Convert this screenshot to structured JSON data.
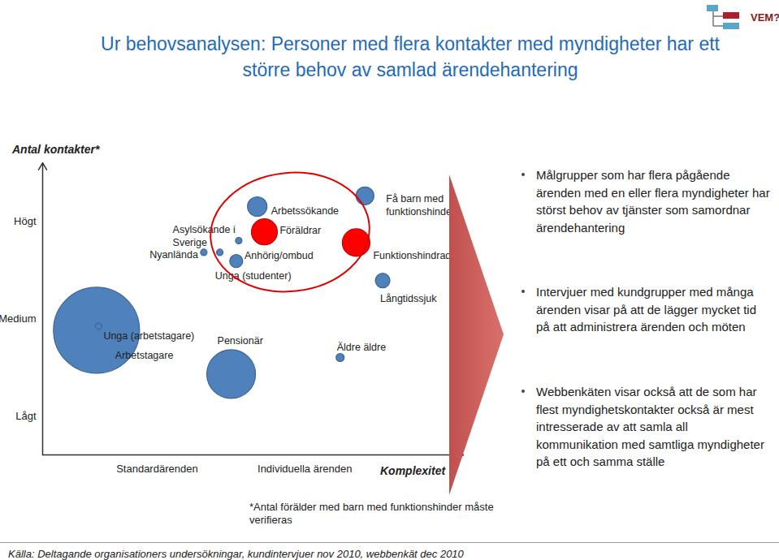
{
  "chart_data": {
    "type": "scatter",
    "title": "Ur behovsanalysen: Personer med flera kontakter med myndigheter har ett\nstörre behov av samlad ärendehantering",
    "x_label": "Komplexitet",
    "y_label": "Antal kontakter*",
    "xlim": [
      0,
      10
    ],
    "ylim": [
      0.6,
      3.6
    ],
    "xticks": [
      {
        "value": 2.72,
        "label": "Standardärenden"
      },
      {
        "value": 6.23,
        "label": "Individuella ärenden"
      }
    ],
    "yticks": [
      {
        "value": 1,
        "label": "Lågt"
      },
      {
        "value": 2,
        "label": "Medium"
      },
      {
        "value": 3,
        "label": "Högt"
      }
    ],
    "grid": false,
    "labels": [
      "Unga (arbetstagare)",
      "Arbetstagare",
      "Pensionär",
      "Äldre äldre",
      "Långtidssjuk",
      "Unga (studenter)",
      "Arbetssökande",
      "Föräldrar",
      "Anhörig/ombud",
      "Asylsökande i\nSverige",
      "Nyanlända",
      "Få barn med\nfunktionshinder*",
      "Funktionshindrad"
    ],
    "x": [
      1.33,
      1.28,
      4.48,
      7.07,
      8.08,
      4.6,
      5.1,
      5.27,
      4.66,
      4.21,
      3.83,
      7.66,
      7.45
    ],
    "y": [
      1.92,
      1.88,
      1.43,
      1.6,
      2.39,
      2.59,
      3.15,
      2.89,
      2.8,
      2.68,
      2.68,
      3.26,
      2.78
    ],
    "sizes": [
      4,
      53,
      30,
      5,
      9,
      8,
      12,
      16,
      4,
      4,
      4,
      11,
      17
    ],
    "colors": [
      "#4f81bd",
      "#4f81bd",
      "#4f81bd",
      "#4f81bd",
      "#4f81bd",
      "#4f81bd",
      "#4f81bd",
      "#ff0000",
      "#4f81bd",
      "#4f81bd",
      "#4f81bd",
      "#4f81bd",
      "#ff0000"
    ],
    "annotations": [
      "Målgrupper som har flera pågående ärenden med en eller flera myndigheter har störst behov av tjänster som samordnar ärendehantering",
      "Intervjuer med kundgrupper med många ärenden visar på att de lägger mycket tid på att administrera ärenden och möten",
      "Webbenkäten visar också att de som har flest myndighetskontakter också är mest intresserade av att samla all kommunikation med samtliga myndigheter på ett och samma ställe"
    ],
    "footnote": "*Antal förälder med barn med funktionshinder måste\nverifieras",
    "source": "Källa: Deltagande organisationers undersökningar, kundintervjuer nov 2010, webbenkät dec 2010",
    "logo": "VEM?"
  }
}
